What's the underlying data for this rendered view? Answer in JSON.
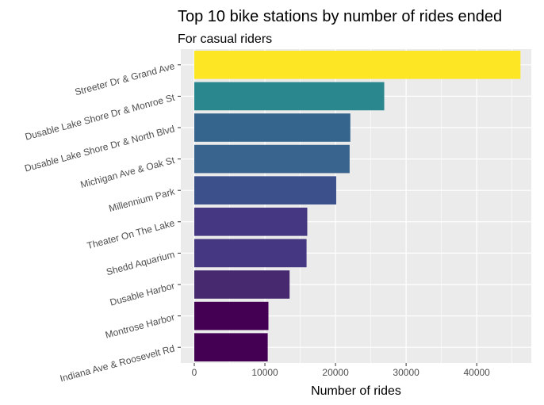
{
  "chart_data": {
    "type": "bar",
    "orientation": "horizontal",
    "title": "Top 10 bike stations by number of rides ended",
    "subtitle": "For casual riders",
    "xlabel": "Number of rides",
    "ylabel": "",
    "xlim": [
      0,
      48000
    ],
    "x_ticks": [
      0,
      10000,
      20000,
      30000,
      40000
    ],
    "x_tick_labels": [
      "0",
      "10000",
      "20000",
      "30000",
      "40000"
    ],
    "categories": [
      "Streeter Dr & Grand Ave",
      "Dusable Lake Shore Dr & Monroe St",
      "Dusable Lake Shore Dr & North Blvd",
      "Michigan Ave & Oak St",
      "Millennium Park",
      "Theater On The Lake",
      "Shedd Aquarium",
      "Dusable Harbor",
      "Montrose Harbor",
      "Indiana Ave & Roosevelt Rd"
    ],
    "values": [
      46200,
      26900,
      22100,
      22000,
      20100,
      16000,
      15900,
      13500,
      10500,
      10400
    ],
    "bar_colors": [
      "#FDE725",
      "#2A878E",
      "#35648D",
      "#38648E",
      "#3C508B",
      "#453781",
      "#453781",
      "#46296F",
      "#440154",
      "#440154"
    ],
    "background": "#EBEBEB",
    "grid": true,
    "legend": "none"
  }
}
